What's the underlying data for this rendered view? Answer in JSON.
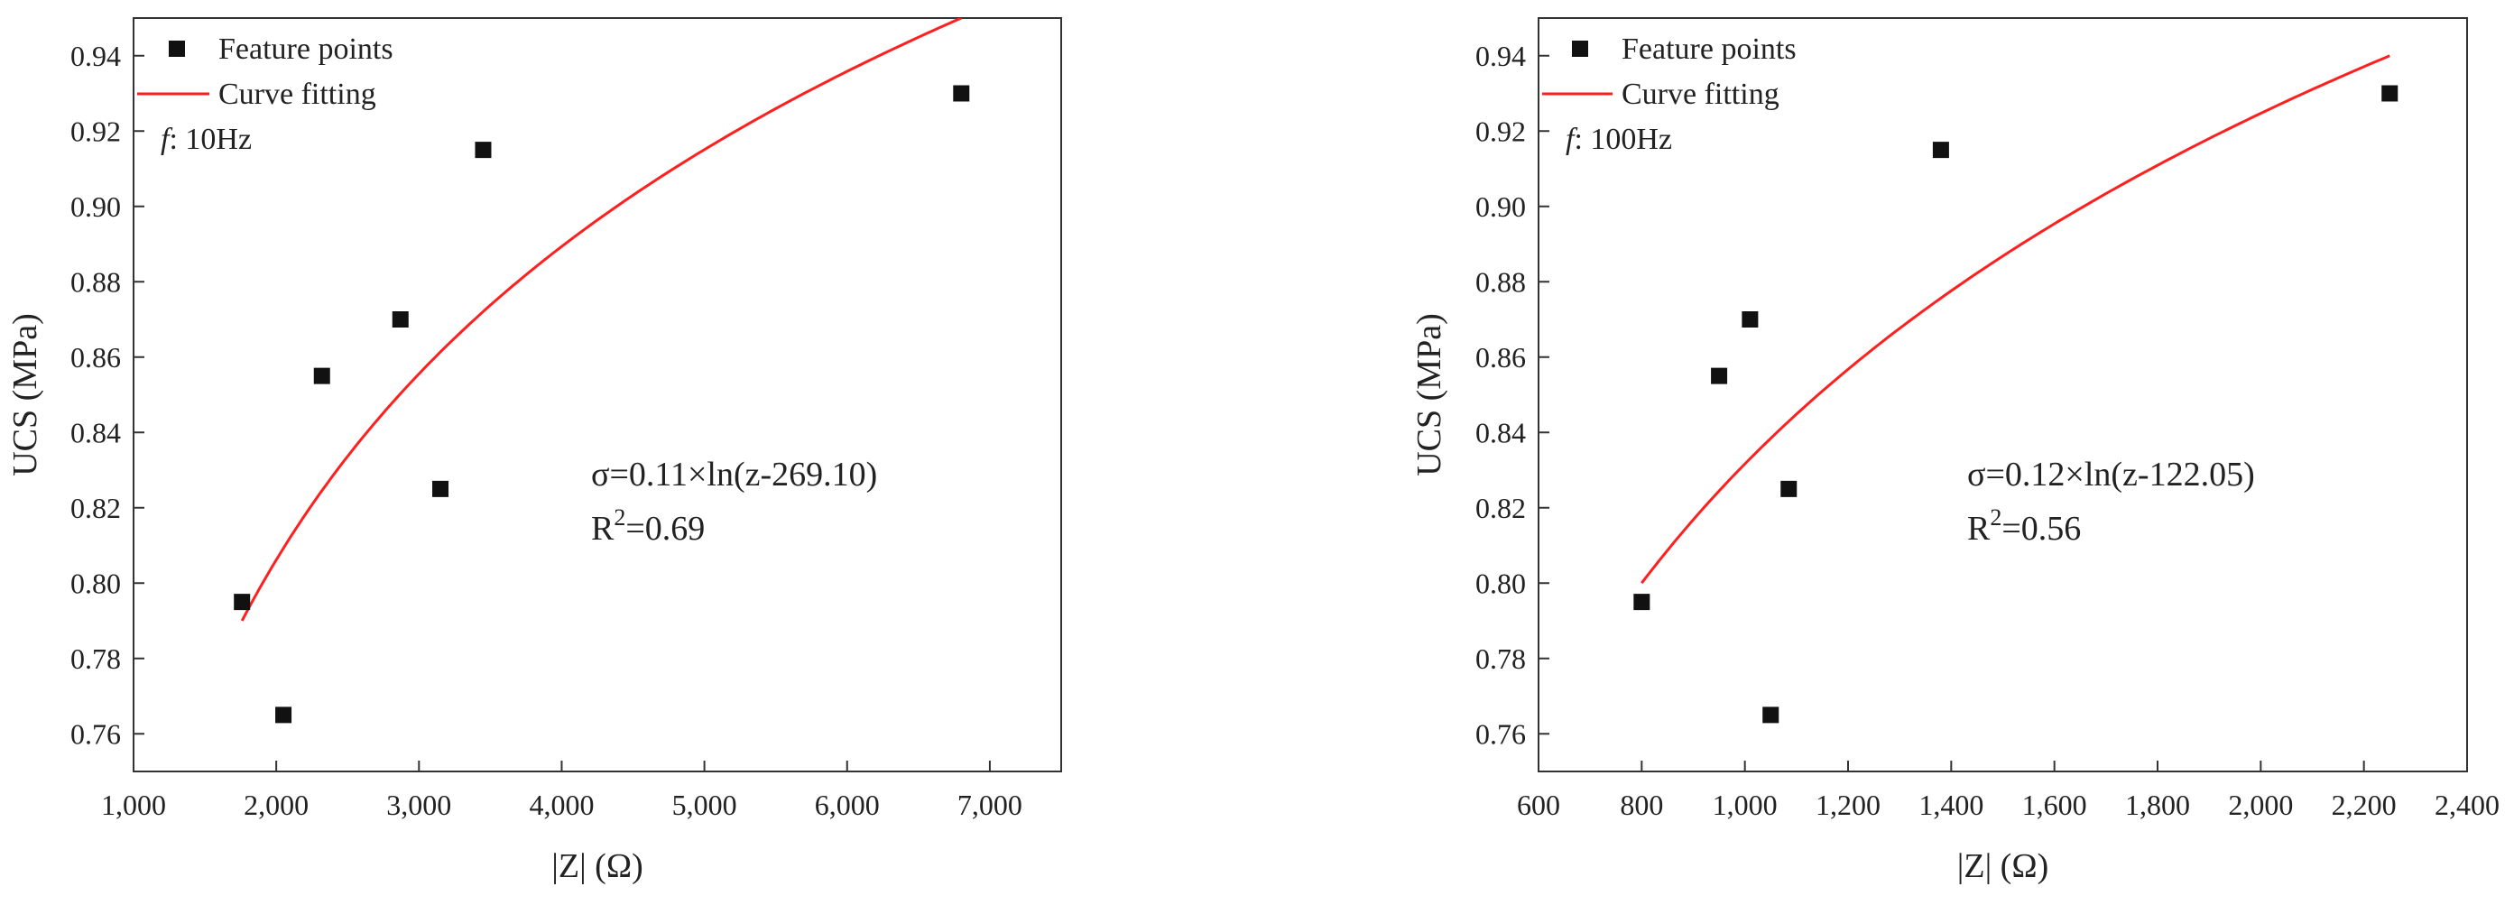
{
  "chart_data": [
    {
      "type": "scatter",
      "xlabel": "|Z| (Ω)",
      "ylabel": "UCS (MPa)",
      "xlim": [
        1000,
        7500
      ],
      "ylim": [
        0.75,
        0.95
      ],
      "xticks": [
        1000,
        2000,
        3000,
        4000,
        5000,
        6000,
        7000
      ],
      "xtick_labels": [
        "1,000",
        "2,000",
        "3,000",
        "4,000",
        "5,000",
        "6,000",
        "7,000"
      ],
      "yticks": [
        0.76,
        0.78,
        0.8,
        0.82,
        0.84,
        0.86,
        0.88,
        0.9,
        0.92,
        0.94
      ],
      "ytick_labels": [
        "0.76",
        "0.78",
        "0.80",
        "0.82",
        "0.84",
        "0.86",
        "0.88",
        "0.90",
        "0.92",
        "0.94"
      ],
      "legend": {
        "position": "top-left",
        "points_label": "Feature points",
        "curve_label": "Curve fitting"
      },
      "frequency": {
        "symbol": "f",
        "text": ": 10Hz"
      },
      "equation": "σ=0.11×ln(z-269.10)",
      "r2": {
        "base": "R",
        "sup": "2",
        "rest": "=0.69"
      },
      "points": {
        "x": [
          1760,
          2050,
          2320,
          2870,
          3150,
          3450,
          6800
        ],
        "y": [
          0.795,
          0.765,
          0.855,
          0.87,
          0.825,
          0.915,
          0.93
        ]
      },
      "fit": {
        "model": "log",
        "a": 0.11,
        "shift": 269.1,
        "x_range": [
          1760,
          6800
        ],
        "y_range": [
          0.79,
          0.95
        ]
      },
      "colors": {
        "points": "#111111",
        "curve": "#ff1f1f"
      }
    },
    {
      "type": "scatter",
      "xlabel": "|Z| (Ω)",
      "ylabel": "UCS (MPa)",
      "xlim": [
        600,
        2400
      ],
      "ylim": [
        0.75,
        0.95
      ],
      "xticks": [
        600,
        800,
        1000,
        1200,
        1400,
        1600,
        1800,
        2000,
        2200,
        2400
      ],
      "xtick_labels": [
        "600",
        "800",
        "1,000",
        "1,200",
        "1,400",
        "1,600",
        "1,800",
        "2,000",
        "2,200",
        "2,400"
      ],
      "yticks": [
        0.76,
        0.78,
        0.8,
        0.82,
        0.84,
        0.86,
        0.88,
        0.9,
        0.92,
        0.94
      ],
      "ytick_labels": [
        "0.76",
        "0.78",
        "0.80",
        "0.82",
        "0.84",
        "0.86",
        "0.88",
        "0.90",
        "0.92",
        "0.94"
      ],
      "legend": {
        "position": "top-left",
        "points_label": "Feature points",
        "curve_label": "Curve fitting"
      },
      "frequency": {
        "symbol": "f",
        "text": ": 100Hz"
      },
      "equation": "σ=0.12×ln(z-122.05)",
      "r2": {
        "base": "R",
        "sup": "2",
        "rest": "=0.56"
      },
      "points": {
        "x": [
          800,
          950,
          1010,
          1050,
          1085,
          1380,
          2250
        ],
        "y": [
          0.795,
          0.855,
          0.87,
          0.765,
          0.825,
          0.915,
          0.93
        ]
      },
      "fit": {
        "model": "log",
        "a": 0.12,
        "shift": 122.05,
        "x_range": [
          800,
          2250
        ],
        "y_range": [
          0.8,
          0.94
        ]
      },
      "colors": {
        "points": "#111111",
        "curve": "#ff1f1f"
      }
    }
  ]
}
